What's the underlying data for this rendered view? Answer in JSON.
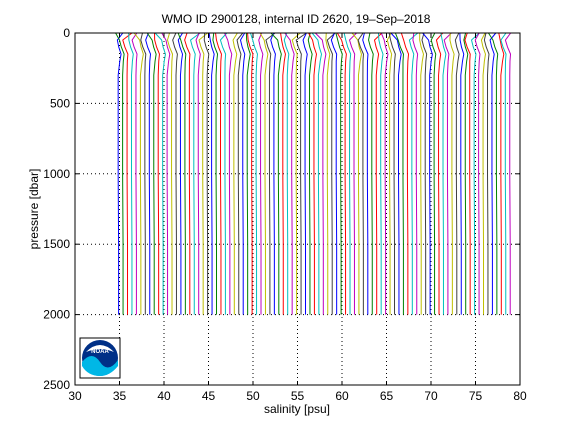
{
  "chart_data": {
    "type": "line",
    "title": "WMO ID 2900128, internal ID 2620, 19–Sep–2018",
    "xlabel": "salinity [psu]",
    "ylabel": "pressure [dbar]",
    "xlim": [
      30,
      80
    ],
    "ylim": [
      0,
      2500
    ],
    "y_reversed": true,
    "x_ticks": [
      30,
      35,
      40,
      45,
      50,
      55,
      60,
      65,
      70,
      75,
      80
    ],
    "y_ticks": [
      0,
      500,
      1000,
      1500,
      2000,
      2500
    ],
    "grid": "dotted",
    "profile_offset_psu": 0.5,
    "profile_count": 89,
    "first_profile_deep_salinity": 34.9,
    "surface_salinity_range": [
      34.0,
      35.6
    ],
    "profile_max_pressure": 2000,
    "colors": [
      "#0000ff",
      "#008000",
      "#ff0000",
      "#00bfbf",
      "#bf00bf",
      "#bfbf00",
      "#404040"
    ],
    "example_profile": {
      "pressure": [
        0,
        50,
        100,
        150,
        200,
        300,
        500,
        700,
        1000,
        1500,
        2000
      ],
      "salinity": [
        34.3,
        34.6,
        34.8,
        35.1,
        35.0,
        34.9,
        34.9,
        34.9,
        34.9,
        34.95,
        34.95
      ]
    },
    "noaa_logo_text": "NOAA"
  }
}
